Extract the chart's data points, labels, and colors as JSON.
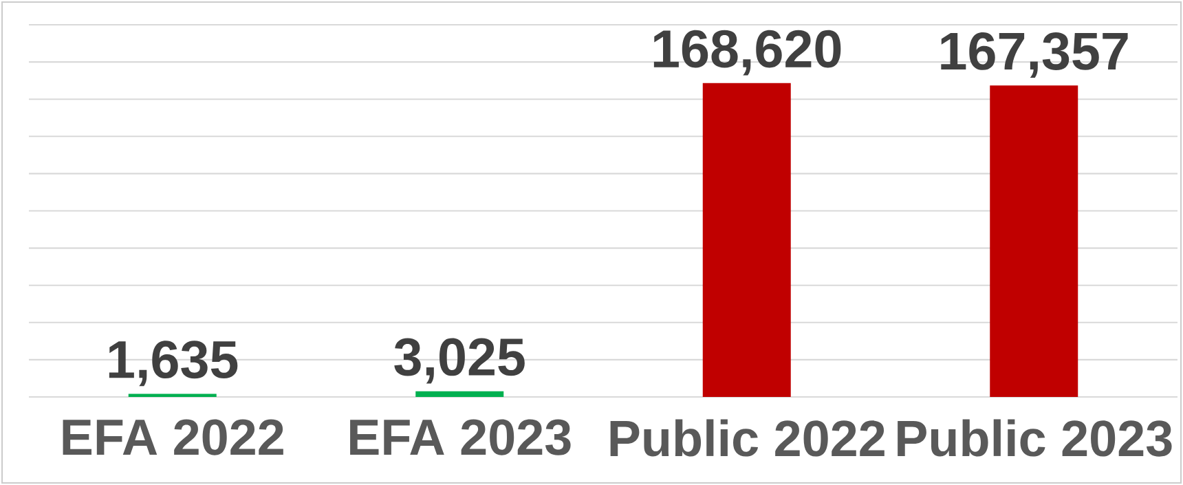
{
  "chart_data": {
    "type": "bar",
    "categories": [
      "EFA 2022",
      "EFA 2023",
      "Public 2022",
      "Public 2023"
    ],
    "values": [
      1635,
      3025,
      168620,
      167357
    ],
    "value_labels": [
      "1,635",
      "3,025",
      "168,620",
      "167,357"
    ],
    "colors": [
      "#00b050",
      "#00b050",
      "#c00000",
      "#c00000"
    ],
    "ylim": [
      0,
      200000
    ],
    "yticks": [
      {
        "value": 0,
        "label": null
      },
      {
        "value": 20000,
        "label": null
      },
      {
        "value": 40000,
        "label": null
      },
      {
        "value": 60000,
        "label": null
      },
      {
        "value": 80000,
        "label": null
      },
      {
        "value": 100000,
        "label": null
      },
      {
        "value": 120000,
        "label": null
      },
      {
        "value": 140000,
        "label": null
      },
      {
        "value": 160000,
        "label": null
      },
      {
        "value": 180000,
        "label": null
      },
      {
        "value": 200000,
        "label": null
      }
    ],
    "grid": "y"
  }
}
